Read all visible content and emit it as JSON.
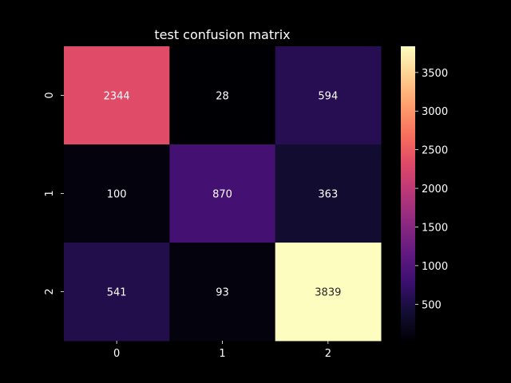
{
  "chart_data": {
    "type": "heatmap",
    "title": "test confusion matrix",
    "xlabel": "",
    "ylabel": "",
    "x_categories": [
      "0",
      "1",
      "2"
    ],
    "y_categories": [
      "0",
      "1",
      "2"
    ],
    "values": [
      [
        2344,
        28,
        594
      ],
      [
        100,
        870,
        363
      ],
      [
        541,
        93,
        3839
      ]
    ],
    "colormap": "magma",
    "color_range": [
      28,
      3839
    ],
    "colorbar_ticks": [
      "500",
      "1000",
      "1500",
      "2000",
      "2500",
      "3000",
      "3500"
    ],
    "colorbar_tick_values": [
      500,
      1000,
      1500,
      2000,
      2500,
      3000,
      3500
    ],
    "background_color": "#000000",
    "text_color": "#ffffff",
    "cell_text_colors": {
      "light_cells": "#ffffff",
      "dark_on_light": "#262626"
    }
  }
}
